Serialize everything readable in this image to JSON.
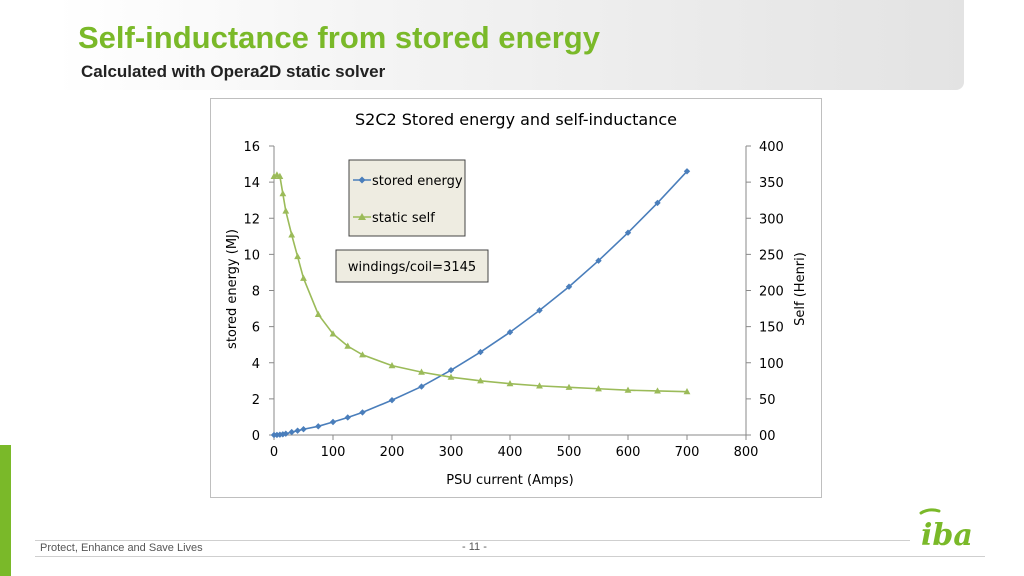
{
  "slide": {
    "title": "Self-inductance from stored energy",
    "subtitle": "Calculated with Opera2D static solver",
    "footer": "Protect, Enhance and Save Lives",
    "page": "- 11 -",
    "logo_text": "iba"
  },
  "colors": {
    "accent": "#7ab929",
    "energy": "#4a7ebb",
    "self": "#9bbb59"
  },
  "chart_data": {
    "type": "line",
    "title": "S2C2 Stored energy and self-inductance",
    "xlabel": "PSU current (Amps)",
    "ylabel": "stored energy (MJ)",
    "y2label": "Self (Henri)",
    "xlim": [
      0,
      800
    ],
    "ylim": [
      0,
      16
    ],
    "y2lim": [
      0,
      400
    ],
    "x_ticks": [
      "0",
      "100",
      "200",
      "300",
      "400",
      "500",
      "600",
      "700",
      "800"
    ],
    "y_ticks": [
      "0",
      "2",
      "4",
      "6",
      "8",
      "10",
      "12",
      "14",
      "16"
    ],
    "y2_ticks": [
      "00",
      "50",
      "100",
      "150",
      "200",
      "250",
      "300",
      "350",
      "400"
    ],
    "grid": false,
    "legend_position": "upper-middle",
    "annotation": "windings/coil=3145",
    "series": [
      {
        "name": "stored energy",
        "axis": "left",
        "marker": "diamond",
        "x": [
          0,
          5,
          10,
          15,
          20,
          30,
          40,
          50,
          75,
          100,
          125,
          150,
          200,
          250,
          300,
          350,
          400,
          450,
          500,
          550,
          600,
          650,
          700
        ],
        "values": [
          0,
          0.005,
          0.018,
          0.04,
          0.07,
          0.16,
          0.24,
          0.32,
          0.48,
          0.72,
          0.97,
          1.25,
          1.93,
          2.68,
          3.59,
          4.59,
          5.69,
          6.9,
          8.21,
          9.65,
          11.2,
          12.85,
          14.6
        ]
      },
      {
        "name": "static self",
        "axis": "right",
        "marker": "triangle",
        "x": [
          0,
          5,
          10,
          15,
          20,
          30,
          40,
          50,
          75,
          100,
          125,
          150,
          200,
          250,
          300,
          350,
          400,
          450,
          500,
          550,
          600,
          650,
          700
        ],
        "values": [
          358,
          360,
          358,
          334,
          310,
          277,
          247,
          217,
          167,
          140,
          123,
          111,
          96,
          87,
          80,
          75,
          71,
          68,
          66,
          64,
          62,
          61,
          60
        ]
      }
    ]
  }
}
